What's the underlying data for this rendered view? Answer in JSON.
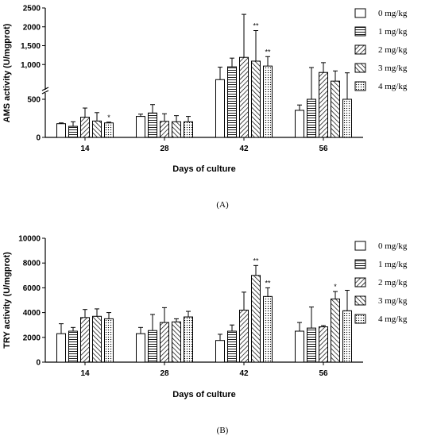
{
  "chart_data": [
    {
      "type": "bar",
      "panel_label": "(A)",
      "ylabel": "AMS activity  (U/mgprot)",
      "xlabel": "Days of culture",
      "categories": [
        "14",
        "28",
        "42",
        "56"
      ],
      "y_axis": "broken",
      "lower_segment": {
        "ylim": [
          0,
          500
        ],
        "ticks": [
          "0",
          "500"
        ]
      },
      "upper_segment": {
        "ylim": [
          250,
          2500
        ],
        "ticks": [
          "500",
          "1,000",
          "1,500",
          "2000",
          "2500"
        ]
      },
      "series": [
        {
          "name": "0 mg/kg",
          "pattern": "empty",
          "values": [
            180,
            275,
            600,
            355
          ],
          "errors": [
            10,
            30,
            330,
            70
          ],
          "sig": [
            "",
            "",
            "",
            ""
          ]
        },
        {
          "name": "1 mg/kg",
          "pattern": "horizontal-lines",
          "values": [
            145,
            320,
            940,
            500
          ],
          "errors": [
            60,
            110,
            230,
            420
          ],
          "sig": [
            "",
            "",
            "",
            ""
          ]
        },
        {
          "name": "2 mg/kg",
          "pattern": "diagonal-lines",
          "values": [
            265,
            210,
            1190,
            790
          ],
          "errors": [
            120,
            100,
            1140,
            260
          ],
          "sig": [
            "",
            "",
            "",
            ""
          ]
        },
        {
          "name": "3 mg/kg",
          "pattern": "cross-hatch",
          "values": [
            215,
            205,
            1090,
            560
          ],
          "errors": [
            110,
            80,
            810,
            270
          ],
          "sig": [
            "",
            "",
            "**",
            ""
          ]
        },
        {
          "name": "4 mg/kg",
          "pattern": "dots",
          "values": [
            190,
            205,
            960,
            500
          ],
          "errors": [
            10,
            70,
            250,
            280
          ],
          "sig": [
            "*",
            "",
            "**",
            ""
          ]
        }
      ]
    },
    {
      "type": "bar",
      "panel_label": "(B)",
      "ylabel": "TRY activity  (U/mgprot)",
      "xlabel": "Days of culture",
      "categories": [
        "14",
        "28",
        "42",
        "56"
      ],
      "ylim": [
        0,
        10000
      ],
      "yticks": [
        "0",
        "2000",
        "4000",
        "6000",
        "8000",
        "10000"
      ],
      "series": [
        {
          "name": "0 mg/kg",
          "pattern": "empty",
          "values": [
            2300,
            2300,
            1750,
            2500
          ],
          "errors": [
            800,
            500,
            500,
            700
          ],
          "sig": [
            "",
            "",
            "",
            ""
          ]
        },
        {
          "name": "1 mg/kg",
          "pattern": "horizontal-lines",
          "values": [
            2500,
            2550,
            2500,
            2750
          ],
          "errors": [
            300,
            1300,
            500,
            1700
          ],
          "sig": [
            "",
            "",
            "",
            ""
          ]
        },
        {
          "name": "2 mg/kg",
          "pattern": "diagonal-lines",
          "values": [
            3600,
            3200,
            4200,
            2850
          ],
          "errors": [
            650,
            1200,
            1450,
            100
          ],
          "sig": [
            "",
            "",
            "",
            ""
          ]
        },
        {
          "name": "3 mg/kg",
          "pattern": "cross-hatch",
          "values": [
            3700,
            3250,
            7000,
            5100
          ],
          "errors": [
            600,
            250,
            800,
            600
          ],
          "sig": [
            "",
            "",
            "**",
            "*"
          ]
        },
        {
          "name": "4 mg/kg",
          "pattern": "dots",
          "values": [
            3500,
            3650,
            5300,
            4150
          ],
          "errors": [
            500,
            450,
            700,
            1650
          ],
          "sig": [
            "",
            "",
            "**",
            ""
          ]
        }
      ]
    }
  ]
}
